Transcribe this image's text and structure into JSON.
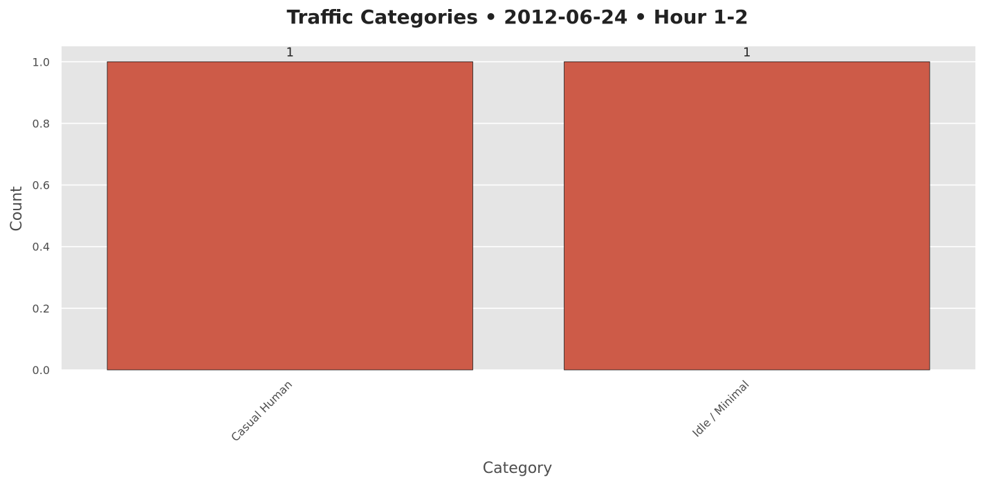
{
  "chart_data": {
    "type": "bar",
    "title": "Traffic Categories • 2012-06-24 • Hour 1-2",
    "xlabel": "Category",
    "ylabel": "Count",
    "categories": [
      "Casual Human",
      "Idle / Minimal"
    ],
    "values": [
      1,
      1
    ],
    "data_labels": [
      "1",
      "1"
    ],
    "ylim": [
      0,
      1.05
    ],
    "yticks": [
      0.0,
      0.2,
      0.4,
      0.6,
      0.8,
      1.0
    ],
    "ytick_labels": [
      "0.0",
      "0.2",
      "0.4",
      "0.6",
      "0.8",
      "1.0"
    ],
    "grid": true,
    "legend": "none",
    "colors": {
      "bar": "#cd5b48",
      "bar_edge": "#1a1a1a",
      "plot_background": "#e5e5e5",
      "grid": "#ffffff"
    }
  }
}
